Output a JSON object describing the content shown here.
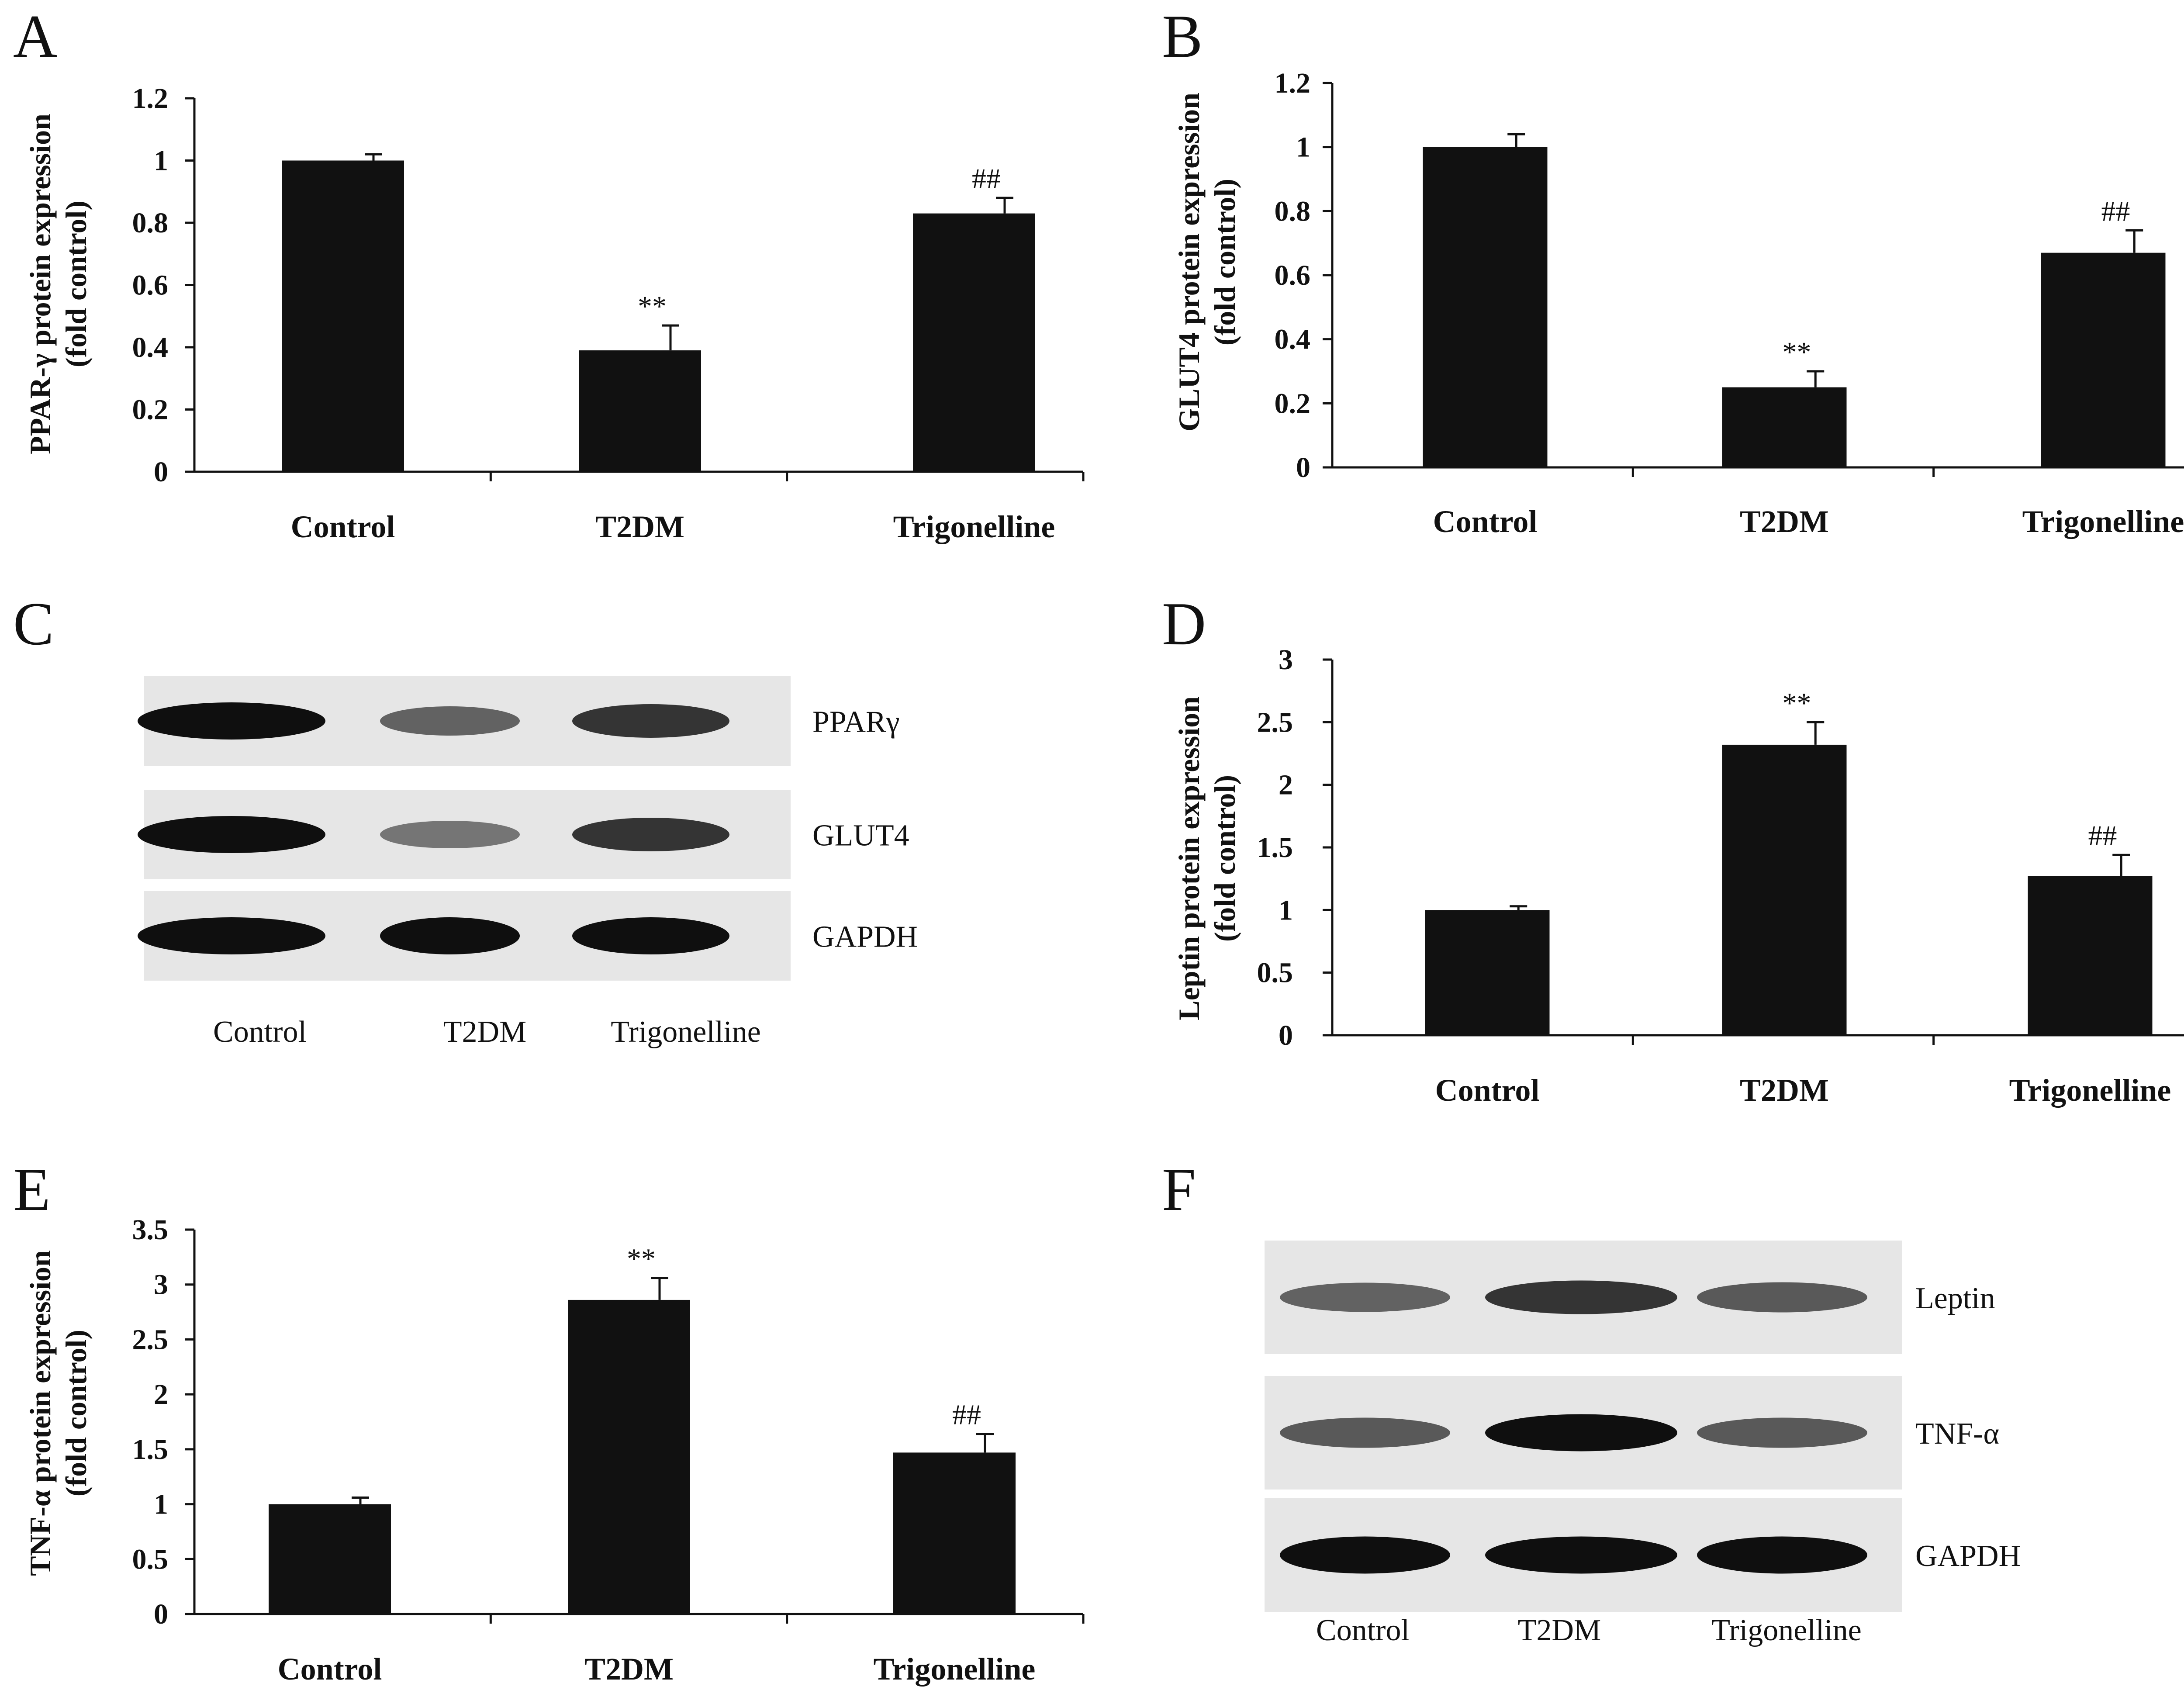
{
  "chart_data": [
    {
      "panel": "A",
      "type": "bar",
      "ylabel": [
        "PPAR-γ  protein expression",
        "(fold control)"
      ],
      "categories": [
        "Control",
        "T2DM",
        "Trigonelline"
      ],
      "values": [
        1.0,
        0.39,
        0.83
      ],
      "errors": [
        0.02,
        0.08,
        0.05
      ],
      "annotations": [
        "",
        "**",
        "##"
      ],
      "ylim": [
        0,
        1.2
      ],
      "yticks": [
        "0",
        "0.2",
        "0.4",
        "0.6",
        "0.8",
        "1",
        "1.2"
      ],
      "ytick_values": [
        0,
        0.2,
        0.4,
        0.6,
        0.8,
        1.0,
        1.2
      ]
    },
    {
      "panel": "B",
      "type": "bar",
      "ylabel": [
        "GLUT4 protein expression",
        "(fold control)"
      ],
      "categories": [
        "Control",
        "T2DM",
        "Trigonelline"
      ],
      "values": [
        1.0,
        0.25,
        0.67
      ],
      "errors": [
        0.04,
        0.05,
        0.07
      ],
      "annotations": [
        "",
        "**",
        "##"
      ],
      "ylim": [
        0,
        1.2
      ],
      "yticks": [
        "0",
        "0.2",
        "0.4",
        "0.6",
        "0.8",
        "1",
        "1.2"
      ],
      "ytick_values": [
        0,
        0.2,
        0.4,
        0.6,
        0.8,
        1.0,
        1.2
      ]
    },
    {
      "panel": "D",
      "type": "bar",
      "ylabel": [
        "Leptin protein expression",
        "(fold control)"
      ],
      "categories": [
        "Control",
        "T2DM",
        "Trigonelline"
      ],
      "values": [
        1.0,
        2.32,
        1.27
      ],
      "errors": [
        0.03,
        0.18,
        0.17
      ],
      "annotations": [
        "",
        "**",
        "##"
      ],
      "ylim": [
        0,
        3
      ],
      "yticks": [
        "0",
        "0.5",
        "1",
        "1.5",
        "2",
        "2.5",
        "3"
      ],
      "ytick_values": [
        0,
        0.5,
        1,
        1.5,
        2,
        2.5,
        3
      ]
    },
    {
      "panel": "E",
      "type": "bar",
      "ylabel": [
        "TNF-α  protein expression",
        "(fold control)"
      ],
      "categories": [
        "Control",
        "T2DM",
        "Trigonelline"
      ],
      "values": [
        1.0,
        2.86,
        1.47
      ],
      "errors": [
        0.06,
        0.2,
        0.17
      ],
      "annotations": [
        "",
        "**",
        "##"
      ],
      "ylim": [
        0,
        3.5
      ],
      "yticks": [
        "0",
        "0.5",
        "1",
        "1.5",
        "2",
        "2.5",
        "3",
        "3.5"
      ],
      "ytick_values": [
        0,
        0.5,
        1,
        1.5,
        2,
        2.5,
        3,
        3.5
      ]
    }
  ],
  "blots": [
    {
      "panel": "C",
      "lanes": [
        "Control",
        "T2DM",
        "Trigonelline"
      ],
      "rows": [
        {
          "label": "PPARγ",
          "intensity": [
            1.0,
            0.55,
            0.8
          ]
        },
        {
          "label": "GLUT4",
          "intensity": [
            1.0,
            0.45,
            0.8
          ]
        },
        {
          "label": "GAPDH",
          "intensity": [
            1.0,
            1.0,
            1.0
          ]
        }
      ]
    },
    {
      "panel": "F",
      "lanes": [
        "Control",
        "T2DM",
        "Trigonelline"
      ],
      "rows": [
        {
          "label": "Leptin",
          "intensity": [
            0.55,
            0.8,
            0.6
          ]
        },
        {
          "label": "TNF-α",
          "intensity": [
            0.6,
            1.0,
            0.6
          ]
        },
        {
          "label": "GAPDH",
          "intensity": [
            1.0,
            1.0,
            1.0
          ]
        }
      ]
    }
  ]
}
